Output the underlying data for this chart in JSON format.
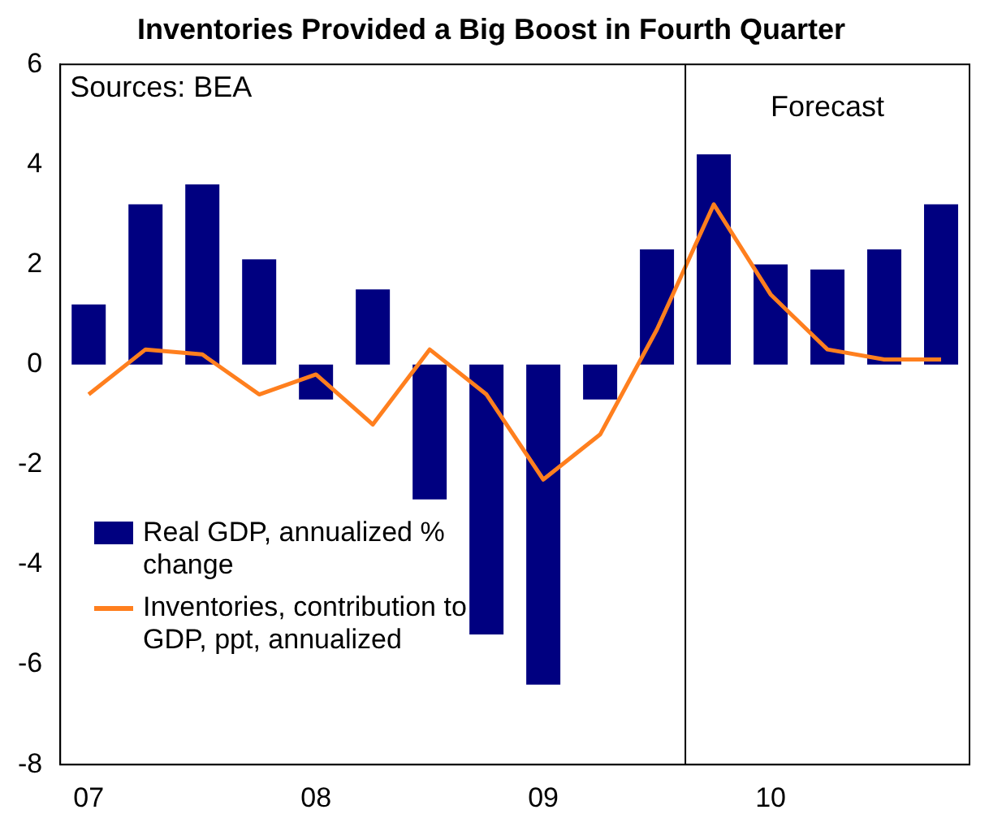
{
  "chart_data": {
    "type": "bar",
    "title": "Inventories Provided a Big Boost in Fourth Quarter",
    "categories": [
      "07",
      null,
      null,
      null,
      "08",
      null,
      null,
      null,
      "09",
      null,
      null,
      null,
      "10",
      null,
      null,
      null
    ],
    "series": [
      {
        "name": "Real GDP, annualized % change",
        "color": "#000080",
        "values": [
          1.2,
          3.2,
          3.6,
          2.1,
          -0.7,
          1.5,
          -2.7,
          -5.4,
          -6.4,
          -0.7,
          2.3,
          4.2,
          2.0,
          1.9,
          2.3,
          3.2
        ]
      },
      {
        "name": "Inventories, contribution to GDP, ppt, annualized",
        "type": "line",
        "color": "#ff7f1e",
        "values": [
          -0.6,
          0.3,
          0.2,
          -0.6,
          -0.2,
          -1.2,
          0.3,
          -0.6,
          -2.3,
          -1.4,
          0.7,
          3.2,
          1.4,
          0.3,
          0.1,
          0.1
        ]
      }
    ],
    "ylim": [
      -8,
      6
    ],
    "yticks": [
      -8,
      -6,
      -4,
      -2,
      0,
      2,
      4,
      6
    ],
    "annotations": [
      "Sources: BEA",
      "Forecast"
    ],
    "grid": false,
    "legend": "bottom left",
    "marker": "none",
    "line_style": "solid"
  }
}
